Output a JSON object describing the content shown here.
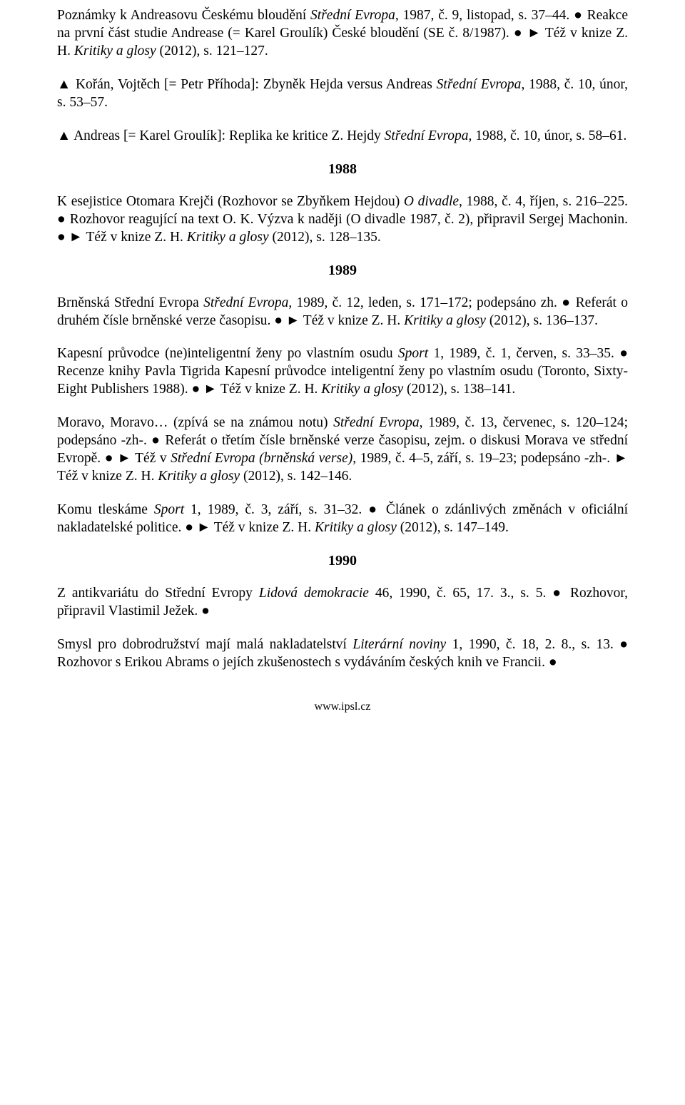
{
  "entries": [
    {
      "html": "Poznámky k Andreasovu Českému bloudění <span class='italic'>Střední Evropa</span>, 1987, č. 9, listopad, s. 37–44. ● Reakce na první část studie Andrease (= Karel Groulík) České bloudění (SE č. 8/1987). ● ► Též v knize Z. H. <span class='italic'>Kritiky a glosy</span> (2012), s. 121–127."
    },
    {
      "html": "▲ Kořán, Vojtěch [= Petr Příhoda]: Zbyněk Hejda versus Andreas <span class='italic'>Střední Evropa</span>, 1988, č. 10, únor, s. 53–57."
    },
    {
      "html": "▲ Andreas [= Karel Groulík]: Replika ke kritice Z. Hejdy <span class='italic'>Střední Evropa</span>, 1988, č. 10, únor, s. 58–61."
    },
    {
      "year": "1988"
    },
    {
      "html": "K esejistice Otomara Krejči (Rozhovor se Zbyňkem Hejdou) <span class='italic'>O divadle</span>, 1988, č. 4, říjen, s. 216–225. ● Rozhovor reagující na text O. K. Výzva k naději (O divadle 1987, č. 2), připravil Sergej Machonin. ● ► Též v knize Z. H. <span class='italic'>Kritiky a glosy</span> (2012), s. 128–135."
    },
    {
      "year": "1989"
    },
    {
      "html": "Brněnská Střední Evropa <span class='italic'>Střední Evropa</span>, 1989, č. 12, leden, s. 171–172; podepsáno zh. ● Referát o druhém čísle brněnské verze časopisu. ● ► Též v knize Z. H. <span class='italic'>Kritiky a glosy</span> (2012), s. 136–137."
    },
    {
      "html": "Kapesní průvodce (ne)inteligentní ženy po vlastním osudu <span class='italic'>Sport</span> 1, 1989, č. 1, červen, s. 33–35. ● Recenze knihy Pavla Tigrida Kapesní průvodce inteligentní ženy po vlastním osudu (Toronto, Sixty-Eight Publishers 1988). ● ► Též v knize Z. H. <span class='italic'>Kritiky a glosy</span> (2012), s. 138–141."
    },
    {
      "html": "Moravo, Moravo… (zpívá se na známou notu) <span class='italic'>Střední Evropa</span>, 1989, č. 13, červenec, s. 120–124; podepsáno -zh-. ● Referát o třetím čísle brněnské verze časopisu, zejm. o diskusi Morava ve střední Evropě. ● ► Též v <span class='italic'>Střední Evropa (brněnská verse)</span>, 1989, č. 4–5, září, s. 19–23; podepsáno -zh-. ► Též v knize Z. H. <span class='italic'>Kritiky a glosy</span> (2012), s. 142–146."
    },
    {
      "html": "Komu tleskáme <span class='italic'>Sport</span> 1, 1989, č. 3, září, s. 31–32. ● Článek o zdánlivých změnách v oficiální nakladatelské politice. ● ► Též v knize Z. H. <span class='italic'>Kritiky a glosy</span> (2012), s. 147–149."
    },
    {
      "year": "1990"
    },
    {
      "html": "Z antikvariátu do Střední Evropy <span class='italic'>Lidová demokracie</span> 46, 1990, č. 65, 17. 3., s. 5. ● Rozhovor, připravil Vlastimil Ježek. ●"
    },
    {
      "html": "Smysl pro dobrodružství mají malá nakladatelství <span class='italic'>Literární noviny</span> 1, 1990, č. 18, 2. 8., s. 13. ● Rozhovor s Erikou Abrams o jejích zkušenostech s vydáváním českých knih ve Francii. ●"
    }
  ],
  "footer": "www.ipsl.cz"
}
